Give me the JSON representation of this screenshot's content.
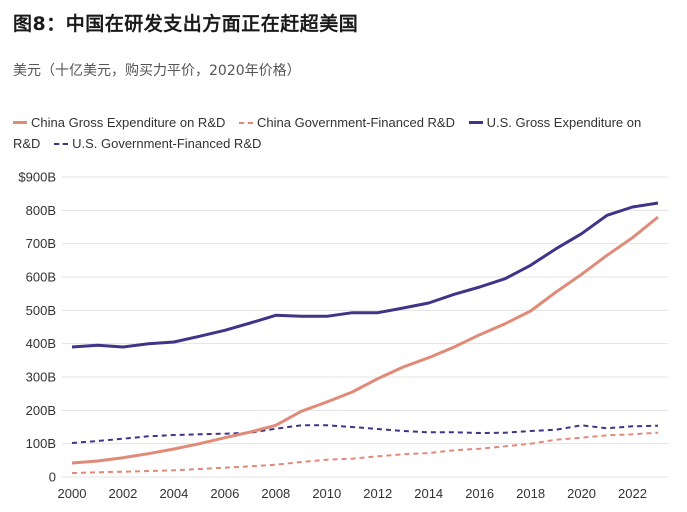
{
  "header": {
    "title": "图8：中国在研发支出方面正在赶超美国",
    "subtitle": "美元（十亿美元，购买力平价，2020年价格）"
  },
  "chart_data": {
    "type": "line",
    "title": "图8：中国在研发支出方面正在赶超美国",
    "subtitle": "美元（十亿美元，购买力平价，2020年价格）",
    "xlabel": "",
    "ylabel": "",
    "xlim": [
      2000,
      2023
    ],
    "ylim": [
      0,
      900
    ],
    "grid": true,
    "legend_position": "top",
    "x": [
      2000,
      2001,
      2002,
      2003,
      2004,
      2005,
      2006,
      2007,
      2008,
      2009,
      2010,
      2011,
      2012,
      2013,
      2014,
      2015,
      2016,
      2017,
      2018,
      2019,
      2020,
      2021,
      2022,
      2023
    ],
    "x_ticks": [
      "2000",
      "2002",
      "2004",
      "2006",
      "2008",
      "2010",
      "2012",
      "2014",
      "2016",
      "2018",
      "2020",
      "2022"
    ],
    "x_tick_values": [
      2000,
      2002,
      2004,
      2006,
      2008,
      2010,
      2012,
      2014,
      2016,
      2018,
      2020,
      2022
    ],
    "y_ticks": [
      "0",
      "100B",
      "200B",
      "300B",
      "400B",
      "500B",
      "600B",
      "700B",
      "800B",
      "$900B"
    ],
    "y_tick_values": [
      0,
      100,
      200,
      300,
      400,
      500,
      600,
      700,
      800,
      900
    ],
    "series": [
      {
        "name": "China Gross Expenditure on R&D",
        "style": "solid",
        "color": "#e08a78",
        "values": [
          42,
          48,
          58,
          70,
          84,
          100,
          118,
          135,
          155,
          197,
          225,
          255,
          295,
          330,
          358,
          390,
          427,
          460,
          498,
          555,
          608,
          665,
          718,
          780
        ]
      },
      {
        "name": "China Government-Financed R&D",
        "style": "dashed",
        "color": "#e08a78",
        "values": [
          12,
          14,
          16,
          18,
          20,
          24,
          28,
          32,
          37,
          45,
          52,
          55,
          62,
          68,
          72,
          80,
          85,
          92,
          100,
          112,
          118,
          125,
          128,
          133
        ]
      },
      {
        "name": "U.S. Gross Expenditure on R&D",
        "style": "solid",
        "color": "#3f3488",
        "values": [
          390,
          395,
          390,
          400,
          405,
          422,
          440,
          462,
          485,
          482,
          482,
          493,
          493,
          507,
          522,
          548,
          570,
          595,
          635,
          685,
          730,
          785,
          810,
          822
        ]
      },
      {
        "name": "U.S. Government-Financed R&D",
        "style": "dashed",
        "color": "#3f3488",
        "values": [
          102,
          108,
          115,
          122,
          126,
          128,
          130,
          133,
          145,
          155,
          155,
          150,
          144,
          138,
          134,
          134,
          132,
          133,
          138,
          142,
          155,
          146,
          152,
          154
        ]
      }
    ]
  }
}
